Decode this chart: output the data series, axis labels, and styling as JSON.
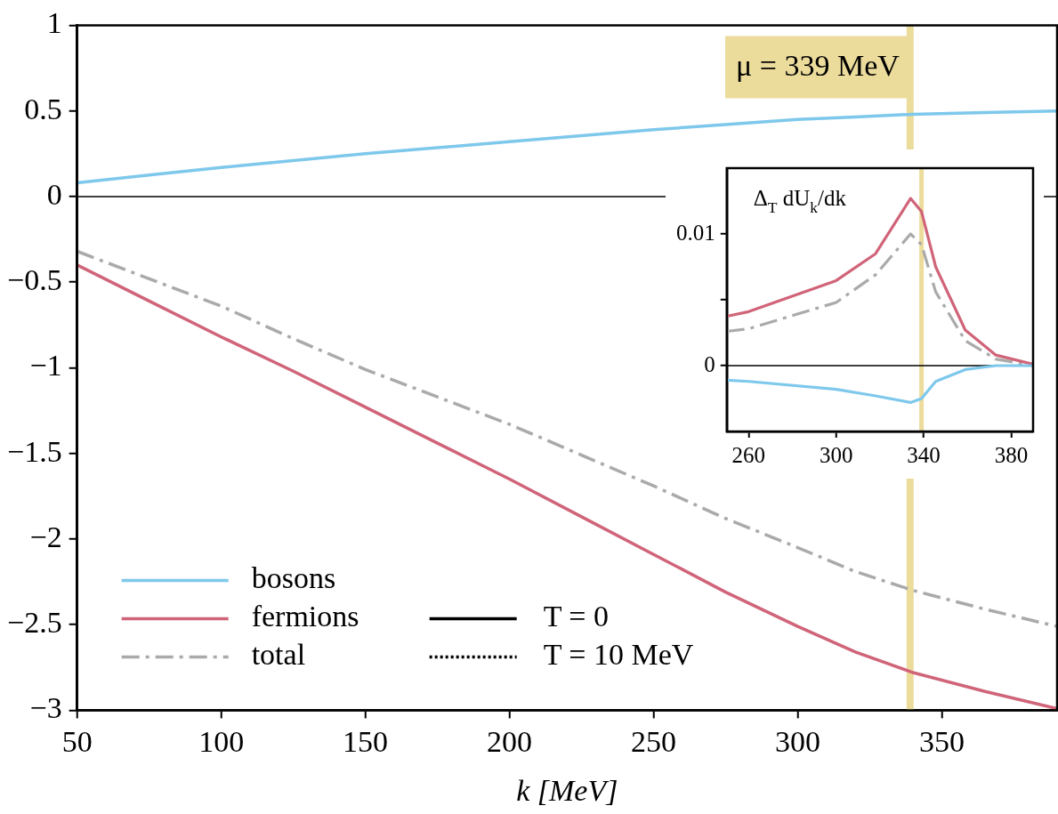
{
  "chart_data": [
    {
      "type": "line",
      "xlabel": "k [MeV]",
      "x": [
        50,
        75,
        100,
        125,
        150,
        175,
        200,
        225,
        250,
        275,
        300,
        320,
        340,
        365,
        390
      ],
      "series": [
        {
          "name": "bosons",
          "color": "#7ec8ec",
          "line_style": "solid",
          "values": [
            0.08,
            0.125,
            0.17,
            0.21,
            0.25,
            0.285,
            0.32,
            0.355,
            0.39,
            0.42,
            0.45,
            0.465,
            0.48,
            0.49,
            0.5
          ]
        },
        {
          "name": "fermions",
          "color": "#d06479",
          "line_style": "solid",
          "values": [
            -0.4,
            -0.61,
            -0.82,
            -1.02,
            -1.23,
            -1.44,
            -1.65,
            -1.87,
            -2.09,
            -2.31,
            -2.51,
            -2.66,
            -2.78,
            -2.89,
            -2.99
          ]
        },
        {
          "name": "total",
          "color": "#aaaaaa",
          "line_style": "dashed",
          "values": [
            -0.32,
            -0.48,
            -0.64,
            -0.83,
            -1.01,
            -1.17,
            -1.33,
            -1.51,
            -1.69,
            -1.88,
            -2.05,
            -2.19,
            -2.3,
            -2.41,
            -2.51
          ]
        },
        {
          "name": "T = 0",
          "color": "#000000",
          "line_style": "solid",
          "values": [
            null,
            null,
            null,
            null,
            null,
            null,
            null,
            null,
            null,
            null,
            null,
            null,
            null,
            null,
            null
          ]
        },
        {
          "name": "T = 10 MeV",
          "color": "#000000",
          "line_style": "dotted",
          "values": [
            null,
            null,
            null,
            null,
            null,
            null,
            null,
            null,
            null,
            null,
            null,
            null,
            null,
            null,
            null
          ]
        }
      ],
      "xlim": [
        50,
        390
      ],
      "xticks": [
        50,
        100,
        150,
        200,
        250,
        300,
        350
      ],
      "ylim": [
        -3,
        1
      ],
      "yticks": [
        -3,
        -2.5,
        -2,
        -1.5,
        -1,
        -0.5,
        0,
        0.5,
        1
      ],
      "ref_lines": [
        {
          "axis": "x",
          "value": 339,
          "label": "μ = 339 MeV",
          "color": "#ecdc9c"
        },
        {
          "axis": "y",
          "value": 0,
          "color": "#000000"
        }
      ],
      "grid": false,
      "legend": "bottom left"
    },
    {
      "type": "line",
      "ylabel": "Δ$_{T}$ dU$_{k}$/dk",
      "x": [
        250,
        260,
        300,
        318,
        334,
        339,
        345.5,
        359,
        373,
        390
      ],
      "series": [
        {
          "color": "#7ec8ec",
          "values": [
            -0.0011,
            -0.0012,
            -0.0018,
            -0.0023,
            -0.0028,
            -0.0025,
            -0.0012,
            -0.0003,
            0,
            0
          ]
        },
        {
          "color": "#d06479",
          "values": [
            0.00375,
            0.0041,
            0.00646,
            0.0085,
            0.0127,
            0.0117,
            0.0075,
            0.0027,
            0.0008,
            0.0001
          ]
        },
        {
          "color": "#aaaaaa",
          "line_style": "dashed",
          "values": [
            0.0026,
            0.0028,
            0.0048,
            0.0069,
            0.01,
            0.0092,
            0.0056,
            0.0019,
            0.0005,
            0
          ]
        }
      ],
      "xlim": [
        250,
        390
      ],
      "xticks": [
        260,
        300,
        340,
        380
      ],
      "ylim": [
        -0.005,
        0.015
      ],
      "yticks": [
        0,
        {
          "value": 0.005,
          "label": null
        },
        0.01
      ],
      "ref_lines": [
        {
          "axis": "x",
          "value": 339,
          "color": "#ecdc9c"
        },
        {
          "axis": "y",
          "value": 0,
          "color": "#000000"
        }
      ],
      "grid": false
    }
  ]
}
